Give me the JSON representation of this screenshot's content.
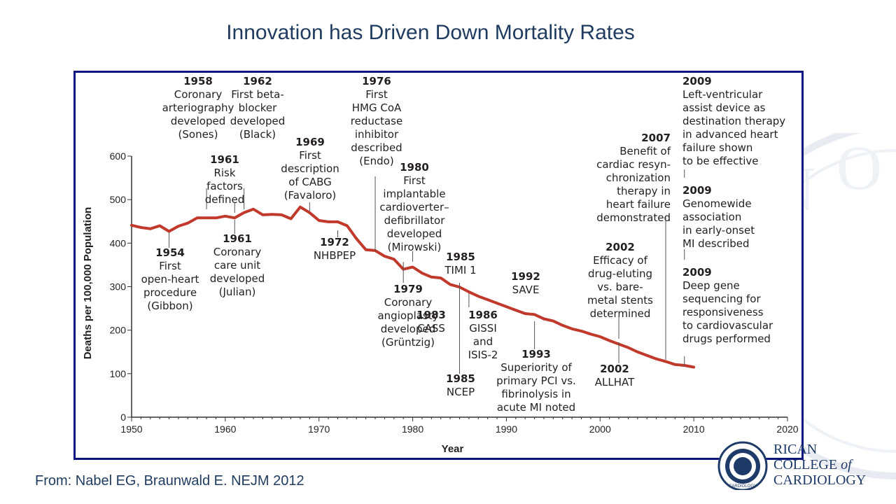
{
  "slide": {
    "title": "Innovation has Driven Down Mortality Rates",
    "citation": "From: Nabel EG, Braunwald E. NEJM 2012"
  },
  "logo": {
    "line1": "RICAN",
    "line2a": "COLLEGE ",
    "line2b": "of",
    "line3": "CARDIOLOGY",
    "seal_text": "CARDIOLOGY"
  },
  "colors": {
    "line": "#c0392b",
    "frame": "#0d1680",
    "title": "#1f3b5f",
    "text": "#231f20"
  },
  "chart_data": {
    "type": "line",
    "title": "",
    "xlabel": "Year",
    "ylabel": "Deaths per 100,000 Population",
    "xlim": [
      1950,
      2020
    ],
    "ylim": [
      0,
      600
    ],
    "x_ticks": [
      1950,
      1960,
      1970,
      1980,
      1990,
      2000,
      2010,
      2020
    ],
    "y_ticks": [
      0,
      100,
      200,
      300,
      400,
      500,
      600
    ],
    "grid": false,
    "legend": "none",
    "series": [
      {
        "x": [
          1950,
          1951,
          1952,
          1953,
          1954,
          1955,
          1956,
          1957,
          1958,
          1959,
          1960,
          1961,
          1962,
          1963,
          1964,
          1965,
          1966,
          1967,
          1968,
          1969,
          1970,
          1971,
          1972,
          1973,
          1974,
          1975,
          1976,
          1977,
          1978,
          1979,
          1980,
          1981,
          1982,
          1983,
          1984,
          1985,
          1986,
          1987,
          1988,
          1989,
          1990,
          1991,
          1992,
          1993,
          1994,
          1995,
          1996,
          1997,
          1998,
          1999,
          2000,
          2001,
          2002,
          2003,
          2004,
          2005,
          2006,
          2007,
          2008,
          2009,
          2010
        ],
        "y": [
          441,
          436,
          433,
          440,
          427,
          439,
          446,
          458,
          458,
          458,
          462,
          458,
          470,
          478,
          465,
          466,
          465,
          456,
          483,
          470,
          452,
          449,
          449,
          440,
          410,
          385,
          383,
          370,
          363,
          340,
          345,
          331,
          322,
          320,
          305,
          299,
          288,
          278,
          270,
          262,
          254,
          246,
          238,
          236,
          226,
          221,
          211,
          203,
          198,
          191,
          185,
          176,
          168,
          160,
          150,
          142,
          134,
          128,
          121,
          119,
          115
        ]
      }
    ],
    "annotations": [
      {
        "year": "1954",
        "text": [
          "First",
          "open-heart",
          "procedure",
          "(Gibbon)"
        ]
      },
      {
        "year": "1958",
        "text": [
          "Coronary",
          "arteriography",
          "developed",
          "(Sones)"
        ]
      },
      {
        "year": "1961",
        "text": [
          "Risk",
          "factors",
          "defined"
        ]
      },
      {
        "year": "1961",
        "text": [
          "Coronary",
          "care unit",
          "developed",
          "(Julian)"
        ]
      },
      {
        "year": "1962",
        "text": [
          "First beta-",
          "blocker",
          "developed",
          "(Black)"
        ]
      },
      {
        "year": "1969",
        "text": [
          "First",
          "description",
          "of CABG",
          "(Favaloro)"
        ]
      },
      {
        "year": "1972",
        "text": [
          "NHBPEP"
        ]
      },
      {
        "year": "1976",
        "text": [
          "First",
          "HMG CoA",
          "reductase",
          "inhibitor",
          "described",
          "(Endo)"
        ]
      },
      {
        "year": "1979",
        "text": [
          "Coronary",
          "angioplasty",
          "developed",
          "(Grüntzig)"
        ]
      },
      {
        "year": "1980",
        "text": [
          "First",
          "implantable",
          "cardioverter–",
          "defibrillator",
          "developed",
          "(Mirowski)"
        ]
      },
      {
        "year": "1983",
        "text": [
          "CASS"
        ]
      },
      {
        "year": "1985",
        "text": [
          "TIMI 1"
        ]
      },
      {
        "year": "1985",
        "text": [
          "NCEP"
        ]
      },
      {
        "year": "1986",
        "text": [
          "GISSI",
          "and",
          "ISIS-2"
        ]
      },
      {
        "year": "1992",
        "text": [
          "SAVE"
        ]
      },
      {
        "year": "1993",
        "text": [
          "Superiority of",
          "primary PCI vs.",
          "fibrinolysis in",
          "acute MI noted"
        ]
      },
      {
        "year": "2002",
        "text": [
          "Efficacy of",
          "drug-eluting",
          "vs. bare-",
          "metal stents",
          "determined"
        ]
      },
      {
        "year": "2002",
        "text": [
          "ALLHAT"
        ]
      },
      {
        "year": "2007",
        "text": [
          "Benefit of",
          "cardiac resyn-",
          "chronization",
          "therapy in",
          "heart failure",
          "demonstrated"
        ]
      },
      {
        "year": "2009",
        "text": [
          "Left-ventricular",
          "assist device as",
          "destination therapy",
          "in advanced heart",
          "failure shown",
          "to be effective"
        ]
      },
      {
        "year": "2009",
        "text": [
          "Genomewide",
          "association",
          "in early-onset",
          "MI described"
        ]
      },
      {
        "year": "2009",
        "text": [
          "Deep gene",
          "sequencing for",
          "responsiveness",
          "to cardiovascular",
          "drugs performed"
        ]
      }
    ]
  }
}
